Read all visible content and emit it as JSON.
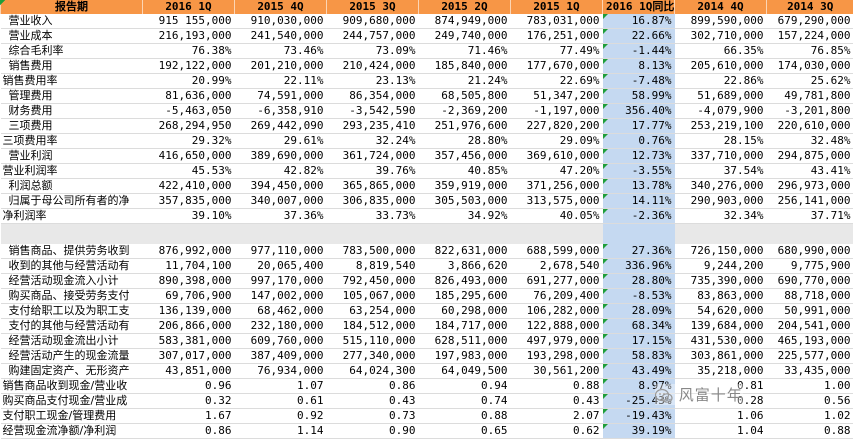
{
  "columns": [
    "报告期",
    "2016 1Q",
    "2015 4Q",
    "2015 3Q",
    "2015 2Q",
    "2015 1Q",
    "2016 1Q同比",
    "2014 4Q",
    "2014 3Q"
  ],
  "section1": [
    {
      "label": "营业收入",
      "values": [
        "915 155,000",
        "910,030,000",
        "909,680,000",
        "874,949,000",
        "783,031,000",
        "16.87%",
        "899,590,000",
        "679,290,000"
      ],
      "hl": false
    },
    {
      "label": "营业成本",
      "values": [
        "216,193,000",
        "241,540,000",
        "244,757,000",
        "249,740,000",
        "176,251,000",
        "22.66%",
        "302,710,000",
        "157,224,000"
      ],
      "hl": false
    },
    {
      "label": "综合毛利率",
      "values": [
        "76.38%",
        "73.46%",
        "73.09%",
        "71.46%",
        "77.49%",
        "-1.44%",
        "66.35%",
        "76.85%"
      ],
      "hl": false
    },
    {
      "label": "销售费用",
      "values": [
        "192,122,000",
        "201,210,000",
        "210,424,000",
        "185,840,000",
        "177,670,000",
        "8.13%",
        "205,610,000",
        "174,030,000"
      ],
      "hl": false
    },
    {
      "label": "销售费用率",
      "values": [
        "20.99%",
        "22.11%",
        "23.13%",
        "21.24%",
        "22.69%",
        "-7.48%",
        "22.86%",
        "25.62%"
      ],
      "hl": true
    },
    {
      "label": "管理费用",
      "values": [
        "81,636,000",
        "74,591,000",
        "86,354,000",
        "68,505,800",
        "51,347,200",
        "58.99%",
        "51,689,000",
        "49,781,800"
      ],
      "hl": false
    },
    {
      "label": "财务费用",
      "values": [
        "-5,463,050",
        "-6,358,910",
        "-3,542,590",
        "-2,369,200",
        "-1,197,000",
        "356.40%",
        "-4,079,900",
        "-3,201,800"
      ],
      "hl": false
    },
    {
      "label": "三项费用",
      "values": [
        "268,294,950",
        "269,442,090",
        "293,235,410",
        "251,976,600",
        "227,820,200",
        "17.77%",
        "253,219,100",
        "220,610,000"
      ],
      "hl": false
    },
    {
      "label": "三项费用率",
      "values": [
        "29.32%",
        "29.61%",
        "32.24%",
        "28.80%",
        "29.09%",
        "0.76%",
        "28.15%",
        "32.48%"
      ],
      "hl": true
    },
    {
      "label": "营业利润",
      "values": [
        "416,650,000",
        "389,690,000",
        "361,724,000",
        "357,456,000",
        "369,610,000",
        "12.73%",
        "337,710,000",
        "294,875,000"
      ],
      "hl": false
    },
    {
      "label": "营业利润率",
      "values": [
        "45.53%",
        "42.82%",
        "39.76%",
        "40.85%",
        "47.20%",
        "-3.55%",
        "37.54%",
        "43.41%"
      ],
      "hl": true
    },
    {
      "label": "利润总额",
      "values": [
        "422,410,000",
        "394,450,000",
        "365,865,000",
        "359,919,000",
        "371,256,000",
        "13.78%",
        "340,276,000",
        "296,973,000"
      ],
      "hl": false
    },
    {
      "label": "归属于母公司所有者的净",
      "values": [
        "357,835,000",
        "340,007,000",
        "306,835,000",
        "305,503,000",
        "313,575,000",
        "14.11%",
        "290,903,000",
        "256,141,000"
      ],
      "hl": false
    },
    {
      "label": "净利润率",
      "values": [
        "39.10%",
        "37.36%",
        "33.73%",
        "34.92%",
        "40.05%",
        "-2.36%",
        "32.34%",
        "37.71%"
      ],
      "hl": true
    }
  ],
  "section2": [
    {
      "label": "销售商品、提供劳务收到",
      "values": [
        "876,992,000",
        "977,110,000",
        "783,500,000",
        "822,631,000",
        "688,599,000",
        "27.36%",
        "726,150,000",
        "680,990,000"
      ],
      "hl": false
    },
    {
      "label": "收到的其他与经营活动有",
      "values": [
        "11,704,100",
        "20,065,400",
        "8,819,540",
        "3,866,620",
        "2,678,540",
        "336.96%",
        "9,244,200",
        "9,775,900"
      ],
      "hl": false
    },
    {
      "label": "经营活动现金流入小计",
      "values": [
        "890,398,000",
        "997,170,000",
        "792,450,000",
        "826,493,000",
        "691,277,000",
        "28.80%",
        "735,390,000",
        "690,770,000"
      ],
      "hl": false
    },
    {
      "label": "购买商品、接受劳务支付",
      "values": [
        "69,706,900",
        "147,002,000",
        "105,067,000",
        "185,295,600",
        "76,209,400",
        "-8.53%",
        "83,863,000",
        "88,718,000"
      ],
      "hl": false
    },
    {
      "label": "支付给职工以及为职工支",
      "values": [
        "136,139,000",
        "68,462,000",
        "63,254,000",
        "60,298,000",
        "106,282,000",
        "28.09%",
        "54,620,000",
        "50,991,000"
      ],
      "hl": false
    },
    {
      "label": "支付的其他与经营活动有",
      "values": [
        "206,866,000",
        "232,180,000",
        "184,512,000",
        "184,717,000",
        "122,888,000",
        "68.34%",
        "139,684,000",
        "204,541,000"
      ],
      "hl": false
    },
    {
      "label": "经营活动现金流出小计",
      "values": [
        "583,381,000",
        "609,760,000",
        "515,110,000",
        "628,511,000",
        "497,979,000",
        "17.15%",
        "431,530,000",
        "465,193,000"
      ],
      "hl": false
    },
    {
      "label": "经营活动产生的现金流量",
      "values": [
        "307,017,000",
        "387,409,000",
        "277,340,000",
        "197,983,000",
        "193,298,000",
        "58.83%",
        "303,861,000",
        "225,577,000"
      ],
      "hl": false
    },
    {
      "label": "购建固定资产、无形资产",
      "values": [
        "43,851,000",
        "76,934,000",
        "64,024,300",
        "64,049,500",
        "30,561,200",
        "43.49%",
        "35,218,000",
        "33,435,000"
      ],
      "hl": false
    },
    {
      "label": "销售商品收到现金/营业收",
      "values": [
        "0.96",
        "1.07",
        "0.86",
        "0.94",
        "0.88",
        "8.97%",
        "0.81",
        "1.00"
      ],
      "hl": true
    },
    {
      "label": "购买商品支付现金/营业成",
      "values": [
        "0.32",
        "0.61",
        "0.43",
        "0.74",
        "0.43",
        "-25.43%",
        "0.28",
        "0.56"
      ],
      "hl": true
    },
    {
      "label": "支付职工现金/管理费用",
      "values": [
        "1.67",
        "0.92",
        "0.73",
        "0.88",
        "2.07",
        "-19.43%",
        "1.06",
        "1.02"
      ],
      "hl": true
    },
    {
      "label": "经营现金流净额/净利润",
      "values": [
        "0.86",
        "1.14",
        "0.90",
        "0.65",
        "0.62",
        "39.19%",
        "1.04",
        "0.88"
      ],
      "hl": true
    }
  ],
  "watermark": {
    "text": "风富十年"
  }
}
